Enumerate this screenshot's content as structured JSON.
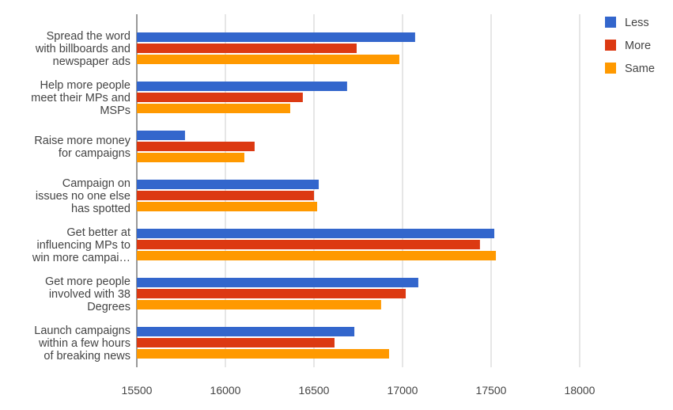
{
  "chart_data": {
    "type": "bar",
    "orientation": "horizontal",
    "title": "",
    "xlabel": "",
    "ylabel": "",
    "xlim": [
      15500,
      18000
    ],
    "ticks": [
      "15500",
      "16000",
      "16500",
      "17000",
      "17500",
      "18000"
    ],
    "tick_values": [
      15500,
      16000,
      16500,
      17000,
      17500,
      18000
    ],
    "grid": true,
    "legend_position": "right",
    "categories": [
      [
        "Spread the word",
        "with billboards and",
        "newspaper ads"
      ],
      [
        "Help more people",
        "meet their MPs and",
        "MSPs"
      ],
      [
        "Raise more money",
        "for campaigns"
      ],
      [
        "Campaign on",
        "issues no one else",
        "has spotted"
      ],
      [
        "Get better at",
        "influencing MPs to",
        "win more campai…"
      ],
      [
        "Get more people",
        "involved with 38",
        "Degrees"
      ],
      [
        "Launch campaigns",
        "within a few hours",
        "of breaking news"
      ]
    ],
    "series": [
      {
        "name": "Less",
        "color": "#3366cc",
        "values": [
          17071,
          16687,
          15772,
          16527,
          17518,
          17089,
          16728
        ]
      },
      {
        "name": "More",
        "color": "#dc3912",
        "values": [
          16741,
          16437,
          16165,
          16500,
          17437,
          17018,
          16616
        ]
      },
      {
        "name": "Same",
        "color": "#ff9900",
        "values": [
          16982,
          16366,
          16107,
          16518,
          17527,
          16879,
          16924
        ]
      }
    ]
  }
}
